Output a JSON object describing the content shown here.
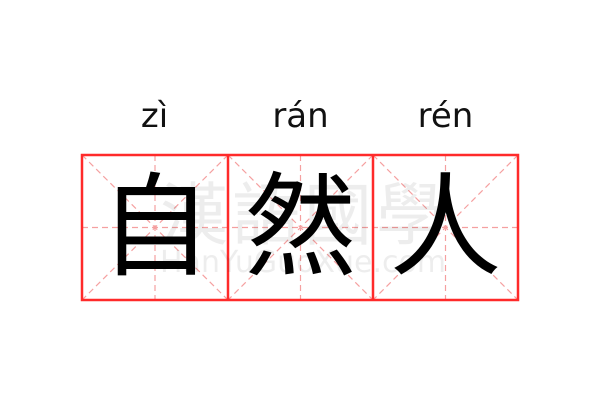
{
  "entries": [
    {
      "pinyin": "zì",
      "char": "自"
    },
    {
      "pinyin": "rán",
      "char": "然"
    },
    {
      "pinyin": "rén",
      "char": "人"
    }
  ],
  "watermark": {
    "title": "漢語國學",
    "url": "HanYuGuoXue.com"
  },
  "colors": {
    "border": "#ff2a2a",
    "guide": "#f5a0a0",
    "text": "#000000"
  }
}
